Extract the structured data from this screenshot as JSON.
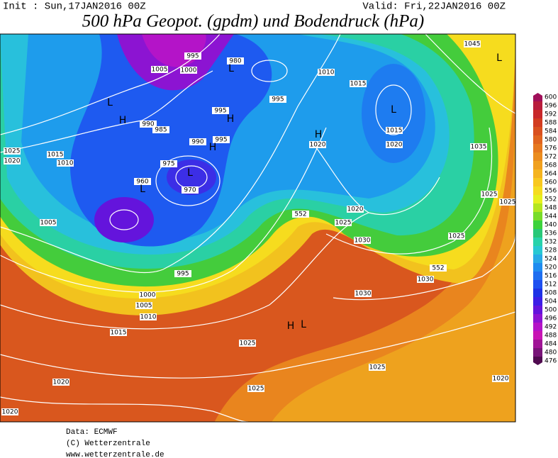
{
  "header": {
    "init": "Init : Sun,17JAN2016 00Z",
    "valid": "Valid: Fri,22JAN2016 00Z",
    "title": "500 hPa Geopot. (gpdm) und Bodendruck (hPa)"
  },
  "map": {
    "pressure_labels": [
      "995",
      "980",
      "1005",
      "1000",
      "1010",
      "1015",
      "995",
      "995",
      "990",
      "985",
      "990",
      "995",
      "1020",
      "1015",
      "1020",
      "975",
      "970",
      "960",
      "1025",
      "1020",
      "1015",
      "1010",
      "1005",
      "1020",
      "1025",
      "1030",
      "1025",
      "1025",
      "1035",
      "1045",
      "1000",
      "1005",
      "1010",
      "1015",
      "1025",
      "1030",
      "1030",
      "1025",
      "1020",
      "1025",
      "1020",
      "1020",
      "995",
      "552",
      "552",
      "1025"
    ],
    "centers": [
      "L",
      "H",
      "H",
      "H",
      "L",
      "L",
      "L",
      "H",
      "H",
      "L",
      "L",
      "L"
    ]
  },
  "colorbar": {
    "labels": [
      600,
      596,
      592,
      588,
      584,
      580,
      576,
      572,
      568,
      564,
      560,
      556,
      552,
      548,
      544,
      540,
      536,
      532,
      528,
      524,
      520,
      516,
      512,
      508,
      504,
      500,
      496,
      492,
      488,
      484,
      480,
      476
    ],
    "colors": [
      "#a0105a",
      "#b81c3c",
      "#c8282a",
      "#d23c20",
      "#d9501e",
      "#e0641e",
      "#e6781e",
      "#eb8c1e",
      "#f0a01e",
      "#f5b41e",
      "#f8c81e",
      "#f5dc1e",
      "#e6f01e",
      "#b4e61e",
      "#78dc28",
      "#3cd23c",
      "#28c878",
      "#28d2aa",
      "#28c8d2",
      "#28aae6",
      "#1e8cf0",
      "#1e6ef0",
      "#1e50f0",
      "#1e32e6",
      "#3c1ee6",
      "#6414dc",
      "#8c14d2",
      "#b414c8",
      "#c814b4",
      "#a01496",
      "#781478",
      "#500a50"
    ]
  },
  "footer": [
    "Data: ECMWF",
    "(C) Wetterzentrale",
    "www.wetterzentrale.de"
  ]
}
